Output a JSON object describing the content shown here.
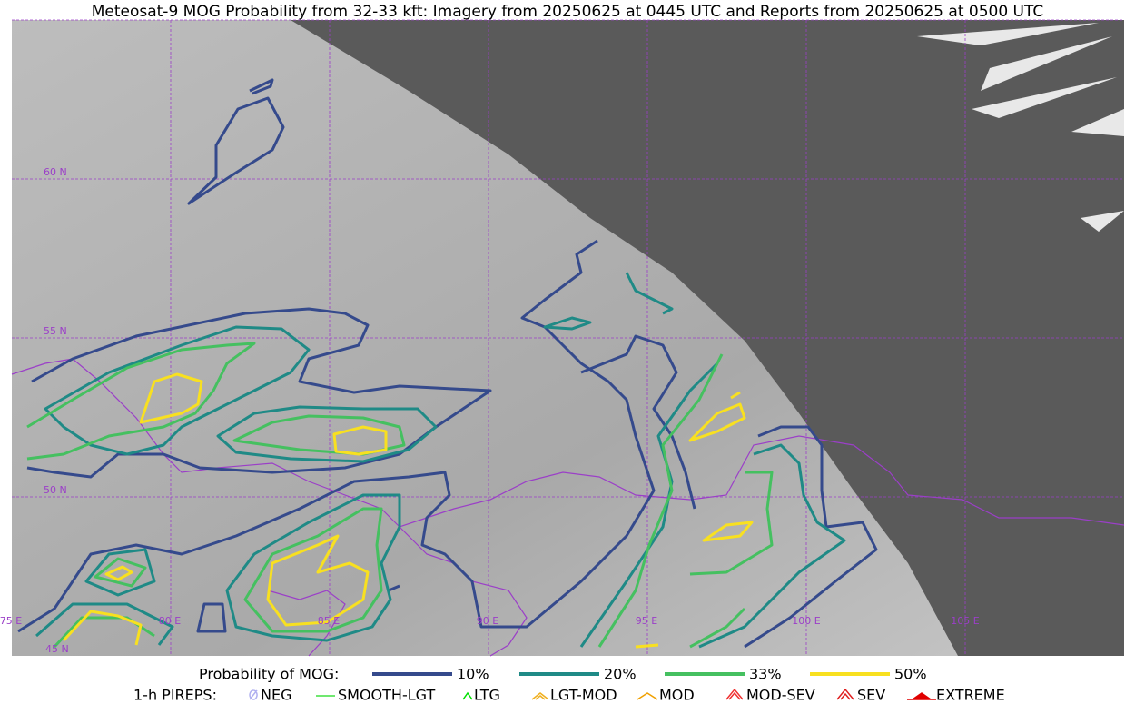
{
  "title": "Meteosat-9 MOG Probability from 32-33 kft: Imagery from 20250625 at 0445 UTC and Reports from 20250625 at 0500 UTC",
  "grid_labels": {
    "lat": [
      "60 N",
      "55 N",
      "50 N",
      "45 N"
    ],
    "lon": [
      "75 E",
      "80 E",
      "85 E",
      "90 E",
      "95 E",
      "100 E",
      "105 E"
    ]
  },
  "legend": {
    "mog_label": "Probability of MOG:",
    "mog_levels": [
      {
        "label": "10%",
        "color": "#354a8c"
      },
      {
        "label": "20%",
        "color": "#1f8a86"
      },
      {
        "label": "33%",
        "color": "#45c060"
      },
      {
        "label": "50%",
        "color": "#f8e020"
      }
    ],
    "pirep_label": "1-h PIREPS:",
    "pireps": [
      {
        "label": "NEG",
        "color": "#b0b0f0"
      },
      {
        "label": "SMOOTH-LGT",
        "color": "#40e040"
      },
      {
        "label": "LTG",
        "color": "#00e000"
      },
      {
        "label": "LGT-MOD",
        "color": "#f0b020"
      },
      {
        "label": "MOD",
        "color": "#f0a000"
      },
      {
        "label": "MOD-SEV",
        "color": "#f03030"
      },
      {
        "label": "SEV",
        "color": "#e02020"
      },
      {
        "label": "EXTREME",
        "color": "#e00000"
      }
    ]
  }
}
